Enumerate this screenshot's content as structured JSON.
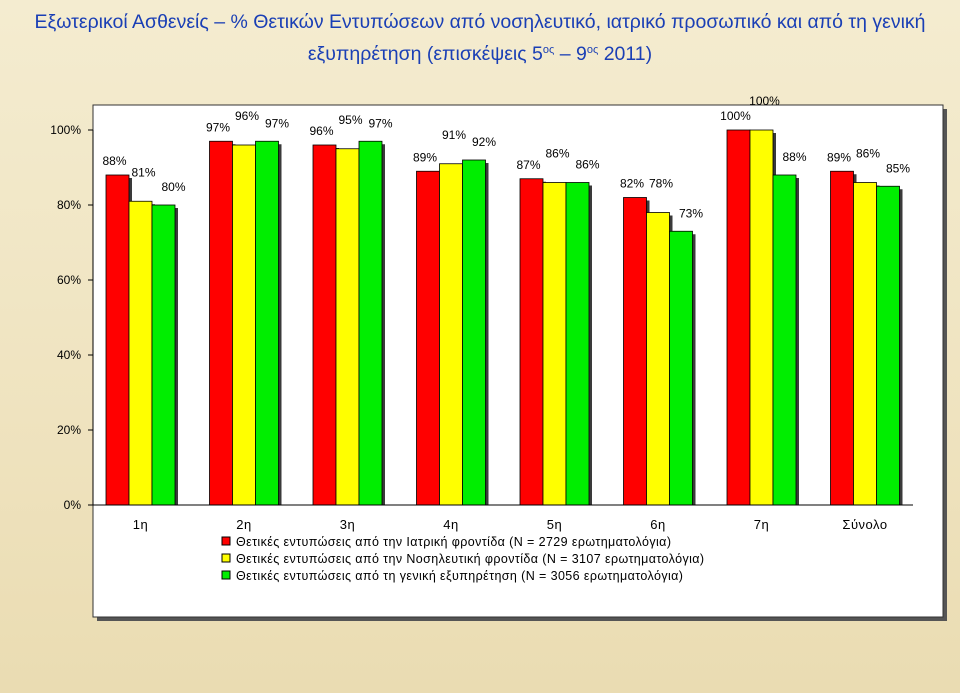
{
  "title": {
    "line1": "Εξωτερικοί Ασθενείς – % Θετικών Εντυπώσεων από νοσηλευτικό, ιατρικό προσωπικό και από τη γενική",
    "line2_a": "εξυπηρέτηση (επισκέψεις 5",
    "sup1": "ος",
    "line2_b": " – 9",
    "sup2": "ος",
    "line2_c": " 2011)"
  },
  "chart_data": {
    "type": "bar",
    "title": "Εξωτερικοί Ασθενείς – % Θετικών Εντυπώσεων από νοσηλευτικό, ιατρικό προσωπικό και από τη γενική εξυπηρέτηση (επισκέψεις 5ος – 9ος 2011)",
    "categories": [
      "1η",
      "2η",
      "3η",
      "4η",
      "5η",
      "6η",
      "7η",
      "Σύνολο"
    ],
    "series": [
      {
        "name": "Θετικές εντυπώσεις από την Ιατρική φροντίδα (Ν = 2729 ερωτηματολόγια)",
        "color": "#ff0000",
        "values": [
          88,
          97,
          96,
          89,
          87,
          82,
          100,
          89
        ]
      },
      {
        "name": "Θετικές εντυπώσεις από την Νοσηλευτική φροντίδα (Ν = 3107 ερωτηματολόγια)",
        "color": "#ffff00",
        "values": [
          81,
          96,
          95,
          91,
          86,
          78,
          100,
          86
        ]
      },
      {
        "name": "Θετικές εντυπώσεις από τη γενική εξυπηρέτηση (Ν = 3056 ερωτηματολόγια)",
        "color": "#00ee00",
        "values": [
          80,
          97,
          97,
          92,
          86,
          73,
          88,
          85
        ]
      }
    ],
    "ylim": [
      0,
      100
    ],
    "yticks": [
      "0%",
      "20%",
      "40%",
      "60%",
      "80%",
      "100%"
    ],
    "ytick_values": [
      0,
      20,
      40,
      60,
      80,
      100
    ],
    "xlabel": "",
    "ylabel": "",
    "grid": false,
    "legend_position": "bottom"
  }
}
